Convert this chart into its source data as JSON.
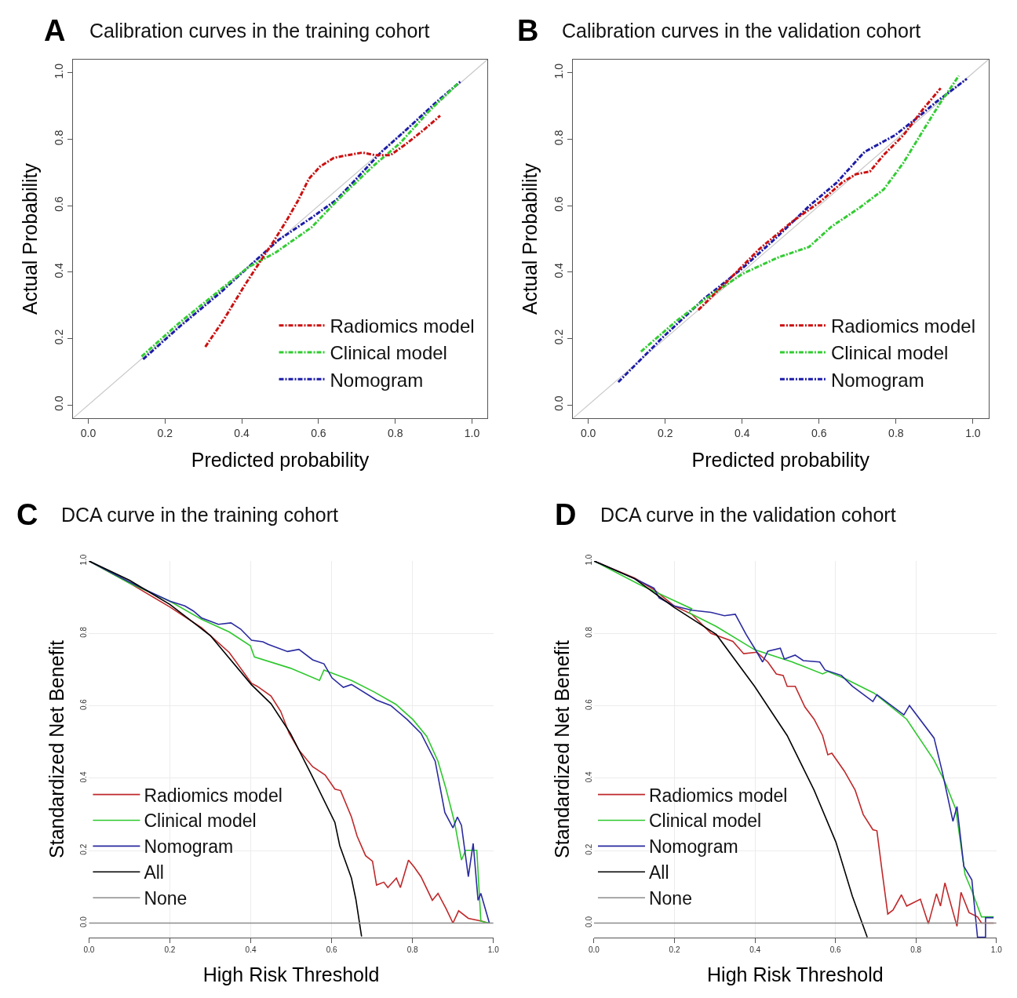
{
  "chart_data": [
    {
      "type": "line",
      "title": "Calibration curves in the training cohort",
      "xlabel": "Predicted probability",
      "ylabel": "Actual Probability",
      "annotations": [
        "A"
      ],
      "legend": "bottom right",
      "line_style": "dashed",
      "xlim": [
        -0.04,
        1.04
      ],
      "ylim": [
        -0.04,
        1.04
      ],
      "xticks": [
        {
          "value": 0,
          "label": "0.0"
        },
        {
          "value": 0.2,
          "label": "0.2"
        },
        {
          "value": 0.4,
          "label": "0.4"
        },
        {
          "value": 0.6,
          "label": "0.6"
        },
        {
          "value": 0.8,
          "label": "0.8"
        },
        {
          "value": 1,
          "label": "1.0"
        }
      ],
      "yticks": [
        {
          "value": 0,
          "label": "0.0"
        },
        {
          "value": 0.2,
          "label": "0.2"
        },
        {
          "value": 0.4,
          "label": "0.4"
        },
        {
          "value": 0.6,
          "label": "0.6"
        },
        {
          "value": 0.8,
          "label": "0.8"
        },
        {
          "value": 1,
          "label": "1.0"
        }
      ],
      "series": [
        {
          "color": "#c8c8c8",
          "line_style": "solid",
          "x": [
            -0.04,
            1.04
          ],
          "values": [
            -0.04,
            1.04
          ]
        },
        {
          "name": "Radiomics model",
          "color": "#cc1010",
          "x": [
            0.305,
            0.352,
            0.409,
            0.452,
            0.481,
            0.517,
            0.546,
            0.575,
            0.604,
            0.64,
            0.669,
            0.715,
            0.748,
            0.787,
            0.827,
            0.877,
            0.917
          ],
          "values": [
            0.175,
            0.255,
            0.363,
            0.439,
            0.489,
            0.556,
            0.614,
            0.681,
            0.718,
            0.744,
            0.751,
            0.76,
            0.752,
            0.752,
            0.785,
            0.831,
            0.871
          ]
        },
        {
          "name": "Clinical model",
          "color": "#33cc33",
          "x": [
            0.139,
            0.236,
            0.344,
            0.416,
            0.488,
            0.582,
            0.654,
            0.741,
            0.813,
            0.885,
            0.964
          ],
          "values": [
            0.146,
            0.246,
            0.347,
            0.414,
            0.459,
            0.535,
            0.622,
            0.718,
            0.789,
            0.881,
            0.969
          ]
        },
        {
          "name": "Nomogram",
          "color": "#1c1ca8",
          "x": [
            0.143,
            0.236,
            0.344,
            0.416,
            0.496,
            0.582,
            0.647,
            0.705,
            0.762,
            0.827,
            0.906,
            0.971
          ],
          "values": [
            0.138,
            0.234,
            0.338,
            0.414,
            0.497,
            0.564,
            0.618,
            0.689,
            0.76,
            0.827,
            0.911,
            0.975
          ]
        }
      ]
    },
    {
      "type": "line",
      "title": "Calibration curves in the validation cohort",
      "xlabel": "Predicted probability",
      "ylabel": "Actual Probability",
      "annotations": [
        "B"
      ],
      "legend": "bottom right",
      "line_style": "dashed",
      "xlim": [
        -0.04,
        1.04
      ],
      "ylim": [
        -0.04,
        1.04
      ],
      "xticks": [
        {
          "value": 0,
          "label": "0.0"
        },
        {
          "value": 0.2,
          "label": "0.2"
        },
        {
          "value": 0.4,
          "label": "0.4"
        },
        {
          "value": 0.6,
          "label": "0.6"
        },
        {
          "value": 0.8,
          "label": "0.8"
        },
        {
          "value": 1,
          "label": "1.0"
        }
      ],
      "yticks": [
        {
          "value": 0,
          "label": "0.0"
        },
        {
          "value": 0.2,
          "label": "0.2"
        },
        {
          "value": 0.4,
          "label": "0.4"
        },
        {
          "value": 0.6,
          "label": "0.6"
        },
        {
          "value": 0.8,
          "label": "0.8"
        },
        {
          "value": 1,
          "label": "1.0"
        }
      ],
      "series": [
        {
          "color": "#c8c8c8",
          "line_style": "solid",
          "x": [
            -0.04,
            1.04
          ],
          "values": [
            -0.04,
            1.04
          ]
        },
        {
          "name": "Radiomics model",
          "color": "#cc1010",
          "x": [
            0.286,
            0.373,
            0.445,
            0.531,
            0.603,
            0.66,
            0.696,
            0.732,
            0.768,
            0.819,
            0.869,
            0.916
          ],
          "values": [
            0.286,
            0.386,
            0.47,
            0.553,
            0.612,
            0.67,
            0.695,
            0.703,
            0.753,
            0.812,
            0.889,
            0.954
          ]
        },
        {
          "name": "Clinical model",
          "color": "#33cc33",
          "x": [
            0.137,
            0.229,
            0.315,
            0.401,
            0.495,
            0.574,
            0.632,
            0.704,
            0.768,
            0.819,
            0.876,
            0.912,
            0.963
          ],
          "values": [
            0.161,
            0.253,
            0.328,
            0.395,
            0.445,
            0.476,
            0.537,
            0.593,
            0.649,
            0.729,
            0.837,
            0.904,
            0.991
          ]
        },
        {
          "name": "Nomogram",
          "color": "#1c1ca8",
          "x": [
            0.078,
            0.193,
            0.301,
            0.401,
            0.488,
            0.574,
            0.646,
            0.718,
            0.797,
            0.862,
            0.905,
            0.984
          ],
          "values": [
            0.069,
            0.203,
            0.32,
            0.412,
            0.503,
            0.599,
            0.67,
            0.762,
            0.812,
            0.871,
            0.913,
            0.982
          ]
        }
      ]
    },
    {
      "type": "line",
      "title": "DCA curve in the training cohort",
      "xlabel": "High Risk Threshold",
      "ylabel": "Standardized Net Benefit",
      "annotations": [
        "C"
      ],
      "legend": "bottom left",
      "line_style": "solid",
      "grid": true,
      "xlim": [
        0,
        1
      ],
      "ylim": [
        -0.04,
        1.0
      ],
      "xticks": [
        {
          "value": 0,
          "label": "0.0"
        },
        {
          "value": 0.2,
          "label": "0.2"
        },
        {
          "value": 0.4,
          "label": "0.4"
        },
        {
          "value": 0.6,
          "label": "0.6"
        },
        {
          "value": 0.8,
          "label": "0.8"
        },
        {
          "value": 1,
          "label": "1.0"
        }
      ],
      "yticks": [
        {
          "value": 0,
          "label": "0.0"
        },
        {
          "value": 0.2,
          "label": "0.2"
        },
        {
          "value": 0.4,
          "label": "0.4"
        },
        {
          "value": 0.6,
          "label": "0.6"
        },
        {
          "value": 0.8,
          "label": "0.8"
        },
        {
          "value": 1,
          "label": "1.0"
        }
      ],
      "series": [
        {
          "name": "Radiomics model",
          "color": "#c0282a",
          "x": [
            0,
            0.1,
            0.2,
            0.278,
            0.347,
            0.402,
            0.416,
            0.45,
            0.474,
            0.495,
            0.519,
            0.553,
            0.564,
            0.584,
            0.608,
            0.622,
            0.649,
            0.663,
            0.684,
            0.701,
            0.711,
            0.729,
            0.739,
            0.76,
            0.77,
            0.79,
            0.804,
            0.821,
            0.849,
            0.863,
            0.883,
            0.9,
            0.914,
            0.938,
            0.973,
            0.986
          ],
          "values": [
            1.0,
            0.939,
            0.873,
            0.816,
            0.747,
            0.662,
            0.654,
            0.627,
            0.585,
            0.524,
            0.478,
            0.432,
            0.424,
            0.409,
            0.37,
            0.366,
            0.293,
            0.24,
            0.186,
            0.171,
            0.105,
            0.113,
            0.098,
            0.124,
            0.098,
            0.174,
            0.155,
            0.128,
            0.063,
            0.082,
            0.04,
            0.0,
            0.034,
            0.013,
            0.005,
            0.0
          ]
        },
        {
          "name": "Clinical model",
          "color": "#2ec82e",
          "x": [
            0,
            0.1,
            0.2,
            0.278,
            0.347,
            0.399,
            0.409,
            0.498,
            0.57,
            0.581,
            0.649,
            0.704,
            0.759,
            0.801,
            0.835,
            0.863,
            0.883,
            0.904,
            0.921,
            0.931,
            0.959,
            0.969,
            0.99
          ],
          "values": [
            1.0,
            0.939,
            0.889,
            0.839,
            0.804,
            0.766,
            0.735,
            0.704,
            0.67,
            0.699,
            0.67,
            0.639,
            0.604,
            0.562,
            0.516,
            0.447,
            0.37,
            0.278,
            0.174,
            0.201,
            0.201,
            0.005,
            0.0
          ]
        },
        {
          "name": "Nomogram",
          "color": "#2a2aa0",
          "x": [
            0,
            0.1,
            0.148,
            0.2,
            0.237,
            0.258,
            0.278,
            0.32,
            0.351,
            0.375,
            0.402,
            0.43,
            0.443,
            0.491,
            0.519,
            0.553,
            0.581,
            0.601,
            0.629,
            0.649,
            0.711,
            0.746,
            0.787,
            0.821,
            0.856,
            0.88,
            0.9,
            0.911,
            0.921,
            0.938,
            0.95,
            0.962,
            0.969,
            0.99
          ],
          "values": [
            1.0,
            0.942,
            0.916,
            0.889,
            0.876,
            0.862,
            0.843,
            0.825,
            0.829,
            0.812,
            0.781,
            0.777,
            0.77,
            0.75,
            0.756,
            0.727,
            0.716,
            0.677,
            0.651,
            0.659,
            0.616,
            0.601,
            0.562,
            0.524,
            0.447,
            0.305,
            0.263,
            0.293,
            0.27,
            0.128,
            0.22,
            0.063,
            0.082,
            0.0
          ]
        },
        {
          "name": "All",
          "color": "#000000",
          "x": [
            0,
            0.1,
            0.2,
            0.3,
            0.402,
            0.45,
            0.498,
            0.55,
            0.608,
            0.62,
            0.649,
            0.66,
            0.674
          ],
          "values": [
            1.0,
            0.947,
            0.88,
            0.794,
            0.658,
            0.606,
            0.524,
            0.41,
            0.278,
            0.214,
            0.124,
            0.065,
            -0.037
          ]
        },
        {
          "name": "None",
          "color": "#8c8c8c",
          "x": [
            0,
            1
          ],
          "values": [
            0,
            0
          ]
        }
      ]
    },
    {
      "type": "line",
      "title": "DCA curve in the validation cohort",
      "xlabel": "High Risk Threshold",
      "ylabel": "Standardized Net Benefit",
      "annotations": [
        "D"
      ],
      "legend": "bottom left",
      "line_style": "solid",
      "grid": true,
      "xlim": [
        0,
        1
      ],
      "ylim": [
        -0.04,
        1.0
      ],
      "xticks": [
        {
          "value": 0,
          "label": "0.0"
        },
        {
          "value": 0.2,
          "label": "0.2"
        },
        {
          "value": 0.4,
          "label": "0.4"
        },
        {
          "value": 0.6,
          "label": "0.6"
        },
        {
          "value": 0.8,
          "label": "0.8"
        },
        {
          "value": 1,
          "label": "1.0"
        }
      ],
      "yticks": [
        {
          "value": 0,
          "label": "0.0"
        },
        {
          "value": 0.2,
          "label": "0.2"
        },
        {
          "value": 0.4,
          "label": "0.4"
        },
        {
          "value": 0.6,
          "label": "0.6"
        },
        {
          "value": 0.8,
          "label": "0.8"
        },
        {
          "value": 1,
          "label": "1.0"
        }
      ],
      "series": [
        {
          "name": "Radiomics model",
          "color": "#c0282a",
          "x": [
            0,
            0.101,
            0.149,
            0.199,
            0.243,
            0.291,
            0.345,
            0.372,
            0.405,
            0.432,
            0.453,
            0.47,
            0.48,
            0.5,
            0.524,
            0.547,
            0.568,
            0.581,
            0.591,
            0.622,
            0.649,
            0.669,
            0.693,
            0.703,
            0.716,
            0.73,
            0.743,
            0.764,
            0.777,
            0.811,
            0.831,
            0.851,
            0.861,
            0.872,
            0.902,
            0.912,
            0.932,
            0.953,
            0.963,
            0.993
          ],
          "values": [
            1.0,
            0.953,
            0.921,
            0.876,
            0.853,
            0.8,
            0.778,
            0.744,
            0.748,
            0.721,
            0.688,
            0.684,
            0.654,
            0.654,
            0.597,
            0.563,
            0.518,
            0.465,
            0.469,
            0.42,
            0.367,
            0.3,
            0.258,
            0.255,
            0.142,
            0.025,
            0.036,
            0.078,
            0.047,
            0.066,
            -0.002,
            0.081,
            0.047,
            0.111,
            -0.009,
            0.085,
            0.029,
            0.017,
            0.0,
            0.0
          ]
        },
        {
          "name": "Clinical model",
          "color": "#2ec82e",
          "x": [
            0,
            0.111,
            0.243,
            0.236,
            0.304,
            0.399,
            0.493,
            0.568,
            0.581,
            0.622,
            0.696,
            0.777,
            0.845,
            0.872,
            0.899,
            0.922,
            0.939,
            0.963,
            0.993
          ],
          "values": [
            1.0,
            0.936,
            0.868,
            0.857,
            0.819,
            0.755,
            0.721,
            0.688,
            0.695,
            0.676,
            0.635,
            0.563,
            0.45,
            0.39,
            0.315,
            0.134,
            0.089,
            0.017,
            0.017
          ]
        },
        {
          "name": "Nomogram",
          "color": "#2a2aa0",
          "x": [
            0,
            0.101,
            0.122,
            0.149,
            0.162,
            0.199,
            0.243,
            0.291,
            0.324,
            0.351,
            0.378,
            0.399,
            0.419,
            0.432,
            0.463,
            0.473,
            0.5,
            0.52,
            0.561,
            0.574,
            0.615,
            0.642,
            0.693,
            0.703,
            0.77,
            0.784,
            0.845,
            0.865,
            0.892,
            0.902,
            0.919,
            0.939,
            0.953,
            0.973,
            0.973,
            0.993
          ],
          "values": [
            1.0,
            0.951,
            0.94,
            0.925,
            0.898,
            0.876,
            0.864,
            0.858,
            0.849,
            0.853,
            0.797,
            0.759,
            0.721,
            0.751,
            0.759,
            0.729,
            0.74,
            0.725,
            0.721,
            0.699,
            0.684,
            0.654,
            0.612,
            0.631,
            0.575,
            0.601,
            0.511,
            0.42,
            0.281,
            0.322,
            0.157,
            0.119,
            -0.039,
            -0.039,
            0.015,
            0.015
          ]
        },
        {
          "name": "All",
          "color": "#000000",
          "x": [
            0,
            0.101,
            0.199,
            0.304,
            0.399,
            0.48,
            0.547,
            0.601,
            0.642,
            0.679
          ],
          "values": [
            1.0,
            0.951,
            0.872,
            0.797,
            0.654,
            0.518,
            0.367,
            0.224,
            0.074,
            -0.039
          ]
        },
        {
          "name": "None",
          "color": "#8c8c8c",
          "x": [
            0,
            1
          ],
          "values": [
            0,
            0
          ]
        }
      ]
    }
  ]
}
